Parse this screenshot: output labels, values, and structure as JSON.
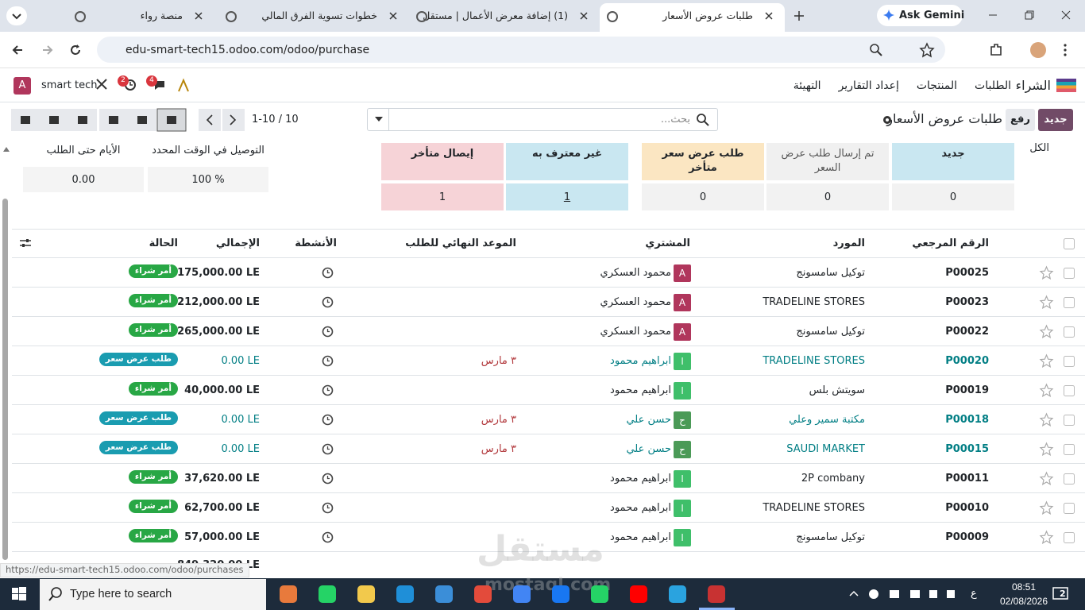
{
  "browser": {
    "tabs": [
      "منصة رواء",
      "خطوات تسوية الفرق المالي",
      "(1) إضافة معرض الأعمال | مستقل",
      "طلبات عروض الأسعار"
    ],
    "gemini": "Ask Gemini",
    "url": "edu-smart-tech15.odoo.com/odoo/purchase"
  },
  "navbar": {
    "app": "الشراء",
    "menus": [
      "الطلبات",
      "المنتجات",
      "إعداد التقارير",
      "التهيئة"
    ],
    "avatar": "A",
    "company": "smart tech",
    "activity_count": 2,
    "message_count": 4
  },
  "control": {
    "new": "جديد",
    "upload": "رفع",
    "title": "طلبات عروض الأسعار",
    "search_placeholder": "بحث...",
    "pager": "1-10 / 10"
  },
  "dashboard": {
    "all": "الكل",
    "cards": [
      {
        "label": "جديد",
        "value": 0,
        "color": "#c9e7f1",
        "value_color": "#f2f2f2"
      },
      {
        "label": "تم إرسال طلب عرض السعر",
        "value": 0,
        "color": "#f0f0f0",
        "value_color": "#f2f2f2"
      },
      {
        "label": "طلب عرض سعر متأخر",
        "value": 0,
        "color": "#fbe6c2",
        "value_color": "#f2f2f2"
      },
      {
        "label": "غير معترف به",
        "value": 1,
        "color": "#c9e7f1",
        "value_color": "#c9e7f1"
      },
      {
        "label": "إيصال متأخر",
        "value": 1,
        "color": "#f6d3d7",
        "value_color": "#f6d3d7"
      }
    ],
    "stats": [
      {
        "label": "التوصيل في الوقت المحدد",
        "value": "100 %"
      },
      {
        "label": "الأيام حتى الطلب",
        "value": "0.00"
      }
    ]
  },
  "table": {
    "headers": [
      "الرقم المرجعي",
      "المورد",
      "المشتري",
      "الموعد النهائي للطلب",
      "الأنشطة",
      "الإجمالي",
      "الحالة"
    ],
    "rows": [
      {
        "ref": "P00025",
        "vendor": "توكيل سامسونج",
        "buyer_initial": "A",
        "avatar_color": "#b0365c",
        "buyer": "محمود العسكري",
        "deadline": null,
        "total": "175,000.00 LE",
        "status": "أمر شراء",
        "badge_color": "#28a745",
        "text_color": "#212529"
      },
      {
        "ref": "P00023",
        "vendor": "TRADELINE STORES",
        "buyer_initial": "A",
        "avatar_color": "#b0365c",
        "buyer": "محمود العسكري",
        "deadline": null,
        "total": "212,000.00 LE",
        "status": "أمر شراء",
        "badge_color": "#28a745",
        "text_color": "#212529"
      },
      {
        "ref": "P00022",
        "vendor": "توكيل سامسونج",
        "buyer_initial": "A",
        "avatar_color": "#b0365c",
        "buyer": "محمود العسكري",
        "deadline": null,
        "total": "265,000.00 LE",
        "status": "أمر شراء",
        "badge_color": "#28a745",
        "text_color": "#212529"
      },
      {
        "ref": "P00020",
        "vendor": "TRADELINE STORES",
        "buyer_initial": "ا",
        "avatar_color": "#3fbf6a",
        "buyer": "ابراهيم محمود",
        "deadline": "٣ مارس",
        "total": "0.00 LE",
        "status": "طلب عرض سعر",
        "badge_color": "#1a9cb0",
        "text_color": "#017e84"
      },
      {
        "ref": "P00019",
        "vendor": "سويتش بلس",
        "buyer_initial": "ا",
        "avatar_color": "#3fbf6a",
        "buyer": "ابراهيم محمود",
        "deadline": null,
        "total": "40,000.00 LE",
        "status": "أمر شراء",
        "badge_color": "#28a745",
        "text_color": "#212529"
      },
      {
        "ref": "P00018",
        "vendor": "مكتبة سمير وعلي",
        "buyer_initial": "ح",
        "avatar_color": "#4b9a57",
        "buyer": "حسن علي",
        "deadline": "٣ مارس",
        "total": "0.00 LE",
        "status": "طلب عرض سعر",
        "badge_color": "#1a9cb0",
        "text_color": "#017e84"
      },
      {
        "ref": "P00015",
        "vendor": "SAUDI MARKET",
        "buyer_initial": "ح",
        "avatar_color": "#4b9a57",
        "buyer": "حسن علي",
        "deadline": "٣ مارس",
        "total": "0.00 LE",
        "status": "طلب عرض سعر",
        "badge_color": "#1a9cb0",
        "text_color": "#017e84"
      },
      {
        "ref": "P00011",
        "vendor": "2P combany",
        "buyer_initial": "ا",
        "avatar_color": "#3fbf6a",
        "buyer": "ابراهيم محمود",
        "deadline": null,
        "total": "37,620.00 LE",
        "status": "أمر شراء",
        "badge_color": "#28a745",
        "text_color": "#212529"
      },
      {
        "ref": "P00010",
        "vendor": "TRADELINE STORES",
        "buyer_initial": "ا",
        "avatar_color": "#3fbf6a",
        "buyer": "ابراهيم محمود",
        "deadline": null,
        "total": "62,700.00 LE",
        "status": "أمر شراء",
        "badge_color": "#28a745",
        "text_color": "#212529"
      },
      {
        "ref": "P00009",
        "vendor": "توكيل سامسونج",
        "buyer_initial": "ا",
        "avatar_color": "#3fbf6a",
        "buyer": "ابراهيم محمود",
        "deadline": null,
        "total": "57,000.00 LE",
        "status": "أمر شراء",
        "badge_color": "#28a745",
        "text_color": "#212529"
      }
    ],
    "footer_total": "849,320.00 LE"
  },
  "status_bar": "https://edu-smart-tech15.odoo.com/odoo/purchases",
  "watermark": [
    "مستقل",
    "mostaql.com"
  ],
  "taskbar": {
    "search": "Type here to search",
    "lang": "ع",
    "time": "08:51",
    "date": "02/08/2026",
    "notifications": 2
  }
}
